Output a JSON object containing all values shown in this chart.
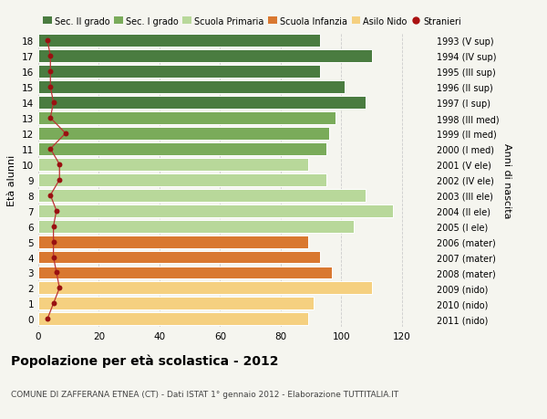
{
  "ages": [
    18,
    17,
    16,
    15,
    14,
    13,
    12,
    11,
    10,
    9,
    8,
    7,
    6,
    5,
    4,
    3,
    2,
    1,
    0
  ],
  "values": [
    93,
    110,
    93,
    101,
    108,
    98,
    96,
    95,
    89,
    95,
    108,
    117,
    104,
    89,
    93,
    97,
    110,
    91,
    89
  ],
  "stranieri": [
    3,
    4,
    4,
    4,
    5,
    4,
    9,
    4,
    7,
    7,
    4,
    6,
    5,
    5,
    5,
    6,
    7,
    5,
    3
  ],
  "right_labels": [
    "1993 (V sup)",
    "1994 (IV sup)",
    "1995 (III sup)",
    "1996 (II sup)",
    "1997 (I sup)",
    "1998 (III med)",
    "1999 (II med)",
    "2000 (I med)",
    "2001 (V ele)",
    "2002 (IV ele)",
    "2003 (III ele)",
    "2004 (II ele)",
    "2005 (I ele)",
    "2006 (mater)",
    "2007 (mater)",
    "2008 (mater)",
    "2009 (nido)",
    "2010 (nido)",
    "2011 (nido)"
  ],
  "bar_colors": [
    "#4a7c40",
    "#4a7c40",
    "#4a7c40",
    "#4a7c40",
    "#4a7c40",
    "#7aab5a",
    "#7aab5a",
    "#7aab5a",
    "#b8d89a",
    "#b8d89a",
    "#b8d89a",
    "#b8d89a",
    "#b8d89a",
    "#d97830",
    "#d97830",
    "#d97830",
    "#f5d080",
    "#f5d080",
    "#f5d080"
  ],
  "legend_labels": [
    "Sec. II grado",
    "Sec. I grado",
    "Scuola Primaria",
    "Scuola Infanzia",
    "Asilo Nido",
    "Stranieri"
  ],
  "legend_colors": [
    "#4a7c40",
    "#7aab5a",
    "#b8d89a",
    "#d97830",
    "#f5d080",
    "#aa1111"
  ],
  "title": "Popolazione per età scolastica - 2012",
  "subtitle": "COMUNE DI ZAFFERANA ETNEA (CT) - Dati ISTAT 1° gennaio 2012 - Elaborazione TUTTITALIA.IT",
  "ylabel_left": "Età alunni",
  "ylabel_right": "Anni di nascita",
  "xlim": [
    0,
    130
  ],
  "background_color": "#f5f5ef",
  "bar_edge_color": "white",
  "grid_color": "#cccccc",
  "stranieri_color": "#991111",
  "stranieri_line_color": "#bb3333"
}
